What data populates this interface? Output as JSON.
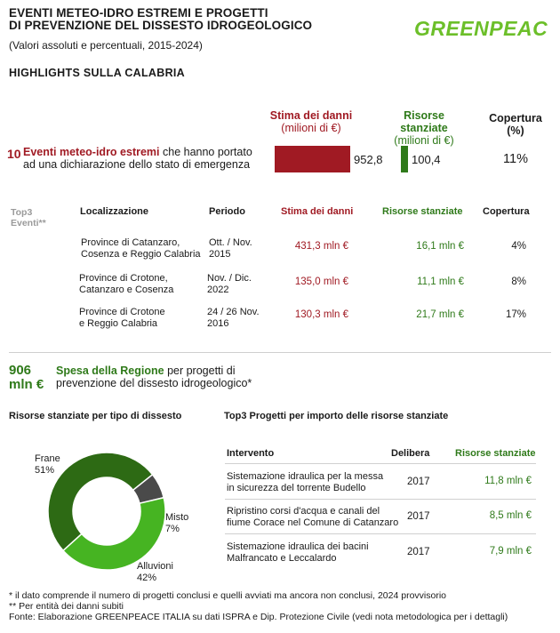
{
  "header": {
    "title_line1": "EVENTI METEO-IDRO ESTREMI E PROGETTI",
    "title_line2": "DI PREVENZIONE DEL DISSESTO IDROGEOLOGICO",
    "subtitle": "(Valori assoluti e percentuali, 2015-2024)",
    "logo_text": "GREENPEACE"
  },
  "section_title": "HIGHLIGHTS SULLA CALABRIA",
  "summary": {
    "col_damage": "Stima dei danni",
    "col_damage_unit": "(milioni di €)",
    "col_resources": "Risorse stanziate",
    "col_resources_unit": "(milioni di €)",
    "col_coverage": "Copertura",
    "col_coverage_unit": "(%)",
    "events_count": "10",
    "events_highlight": "Eventi meteo-idro estremi",
    "events_rest": "che hanno portato",
    "events_line2": "ad una dichiarazione dello stato di emergenza",
    "damage_value": "952,8",
    "resources_value": "100,4",
    "coverage_value": "11%"
  },
  "top3_events": {
    "side_label_1": "Top3",
    "side_label_2": "Eventi**",
    "headers": {
      "location": "Localizzazione",
      "period": "Periodo",
      "damage": "Stima dei danni",
      "resources": "Risorse stanziate",
      "coverage": "Copertura"
    },
    "rows": [
      {
        "loc1": "Province di Catanzaro,",
        "loc2": "Cosenza e Reggio Calabria",
        "per1": "Ott. / Nov.",
        "per2": "2015",
        "damage": "431,3 mln €",
        "resources": "16,1 mln €",
        "coverage": "4%"
      },
      {
        "loc1": "Province di Crotone,",
        "loc2": "Catanzaro e Cosenza",
        "per1": "Nov. / Dic.",
        "per2": "2022",
        "damage": "135,0 mln €",
        "resources": "11,1 mln €",
        "coverage": "8%"
      },
      {
        "loc1": "Province di Crotone",
        "loc2": "e Reggio Calabria",
        "per1": "24 / 26 Nov.",
        "per2": "2016",
        "damage": "130,3 mln €",
        "resources": "21,7 mln €",
        "coverage": "17%"
      }
    ]
  },
  "region": {
    "amount_1": "906",
    "amount_2": "mln €",
    "highlight": "Spesa della Regione",
    "text_rest": "per progetti di",
    "text_line2": "prevenzione del dissesto idrogeologico*"
  },
  "chart_title": "Risorse stanziate per tipo di dissesto",
  "chart_data": {
    "type": "pie",
    "categories": [
      "Frane",
      "Alluvioni",
      "Misto"
    ],
    "values": [
      51,
      42,
      7
    ],
    "value_labels": [
      "51%",
      "42%",
      "7%"
    ],
    "colors": [
      "#2d6a14",
      "#46b422",
      "#4a4a4a"
    ],
    "title": "Risorse stanziate per tipo di dissesto"
  },
  "top3_projects": {
    "title": "Top3 Progetti per importo delle risorse stanziate",
    "headers": {
      "intervention": "Intervento",
      "resolution": "Delibera",
      "resources": "Risorse stanziate"
    },
    "rows": [
      {
        "l1": "Sistemazione idraulica per la messa",
        "l2": "in sicurezza del torrente Budello",
        "year": "2017",
        "res": "11,8 mln €"
      },
      {
        "l1": "Ripristino corsi d'acqua e canali del",
        "l2": "fiume Corace nel Comune di Catanzaro",
        "year": "2017",
        "res": "8,5 mln €"
      },
      {
        "l1": "Sistemazione idraulica dei bacini",
        "l2": "Malfrancato e Leccalardo",
        "year": "2017",
        "res": "7,9 mln €"
      }
    ]
  },
  "footnotes": {
    "f1": "* il dato comprende il numero di progetti conclusi e quelli avviati ma ancora non conclusi, 2024 provvisorio",
    "f2": "** Per entità dei danni subiti",
    "f3": "Fonte: Elaborazione GREENPEACE ITALIA su dati ISPRA e Dip. Protezione Civile (vedi nota metodologica per i dettagli)"
  }
}
